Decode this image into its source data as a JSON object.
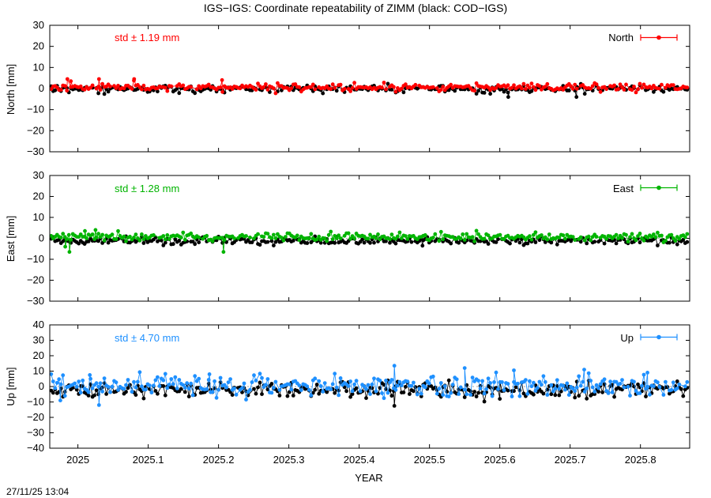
{
  "title": "IGS−IGS: Coordinate repeatability of ZIMM (black: COD−IGS)",
  "xlabel": "YEAR",
  "timestamp": "27/11/25 13:04",
  "chart_data": [
    {
      "type": "scatter",
      "name": "North",
      "ylabel": "North [mm]",
      "ylim": [
        -30,
        30
      ],
      "yticks": [
        -30,
        -20,
        -10,
        0,
        10,
        20,
        30
      ],
      "xlim": [
        2024.96,
        2025.87
      ],
      "xticks": [
        2025,
        2025.1,
        2025.2,
        2025.3,
        2025.4,
        2025.5,
        2025.6,
        2025.7,
        2025.8
      ],
      "std_label": "std ± 1.19 mm",
      "color": "#ff0000",
      "legend": "North",
      "legend_position": "top-right",
      "series": [
        {
          "name": "North",
          "color": "#ff0000",
          "mean": 0.6,
          "sd": 0.9,
          "seed": 11,
          "outliers": [
            [
              2024.985,
              4.5
            ],
            [
              2024.99,
              3.5
            ],
            [
              2025.03,
              4.5
            ],
            [
              2025.08,
              4.5
            ],
            [
              2025.205,
              4.0
            ]
          ]
        },
        {
          "name": "COD−IGS",
          "color": "#000000",
          "mean": -0.2,
          "sd": 0.9,
          "seed": 12,
          "outliers": [
            [
              2025.612,
              -4.0
            ],
            [
              2025.709,
              -4.0
            ]
          ]
        }
      ]
    },
    {
      "type": "scatter",
      "name": "East",
      "ylabel": "East [mm]",
      "ylim": [
        -30,
        30
      ],
      "yticks": [
        -30,
        -20,
        -10,
        0,
        10,
        20,
        30
      ],
      "xlim": [
        2024.96,
        2025.87
      ],
      "xticks": [
        2025,
        2025.1,
        2025.2,
        2025.3,
        2025.4,
        2025.5,
        2025.6,
        2025.7,
        2025.8
      ],
      "std_label": "std ± 1.28 mm",
      "color": "#00b400",
      "legend": "East",
      "legend_position": "top-right",
      "series": [
        {
          "name": "East",
          "color": "#00b400",
          "mean": 0.6,
          "sd": 1.0,
          "seed": 21,
          "outliers": [
            [
              2024.982,
              -4.0
            ],
            [
              2024.988,
              -6.5
            ],
            [
              2025.01,
              3.5
            ],
            [
              2025.025,
              4.0
            ],
            [
              2025.207,
              -6.5
            ]
          ]
        },
        {
          "name": "COD−IGS",
          "color": "#000000",
          "mean": -1.2,
          "sd": 0.8,
          "seed": 22,
          "outliers": [
            [
              2025.49,
              -3.5
            ]
          ]
        }
      ]
    },
    {
      "type": "scatter",
      "name": "Up",
      "ylabel": "Up [mm]",
      "ylim": [
        -40,
        40
      ],
      "yticks": [
        -40,
        -30,
        -20,
        -10,
        0,
        10,
        20,
        30,
        40
      ],
      "xlim": [
        2024.96,
        2025.87
      ],
      "xticks": [
        2025,
        2025.1,
        2025.2,
        2025.3,
        2025.4,
        2025.5,
        2025.6,
        2025.7,
        2025.8
      ],
      "std_label": "std ± 4.70 mm",
      "color": "#1e90ff",
      "legend": "Up",
      "legend_position": "top-right",
      "series": [
        {
          "name": "Up",
          "color": "#1e90ff",
          "mean": 0.5,
          "sd": 3.6,
          "seed": 31,
          "outliers": [
            [
              2024.975,
              -9.0
            ],
            [
              2025.017,
              7.5
            ],
            [
              2025.03,
              -12.0
            ],
            [
              2025.187,
              8.0
            ],
            [
              2025.45,
              13.5
            ],
            [
              2025.55,
              12.0
            ],
            [
              2025.62,
              10.5
            ],
            [
              2025.72,
              11.0
            ],
            [
              2025.81,
              9.0
            ]
          ]
        },
        {
          "name": "COD−IGS",
          "color": "#000000",
          "mean": -2.0,
          "sd": 2.6,
          "seed": 32,
          "outliers": [
            [
              2025.45,
              -12.5
            ],
            [
              2025.41,
              -7.5
            ],
            [
              2025.6,
              -8.0
            ]
          ]
        }
      ]
    }
  ]
}
